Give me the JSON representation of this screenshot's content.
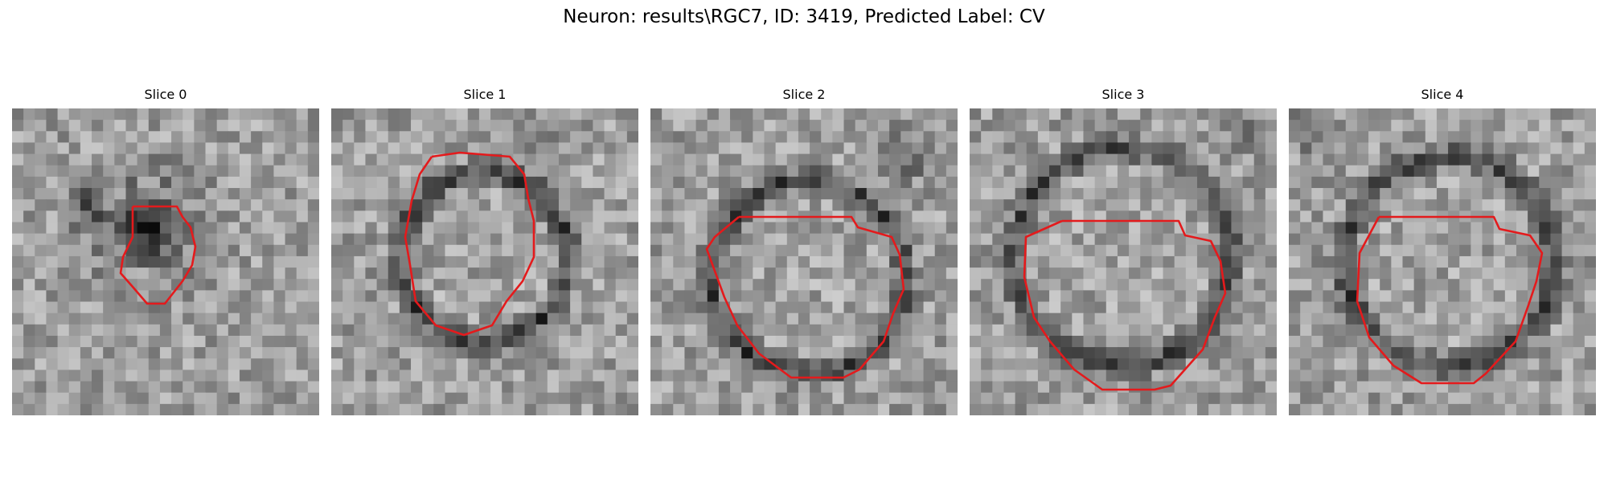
{
  "figure": {
    "title": "Neuron: results\\RGC7, ID: 3419, Predicted Label: CV"
  },
  "panels": [
    {
      "title": "Slice 0"
    },
    {
      "title": "Slice 1"
    },
    {
      "title": "Slice 2"
    },
    {
      "title": "Slice 3"
    },
    {
      "title": "Slice 4"
    }
  ],
  "colors": {
    "contour": "#e41a1c"
  }
}
